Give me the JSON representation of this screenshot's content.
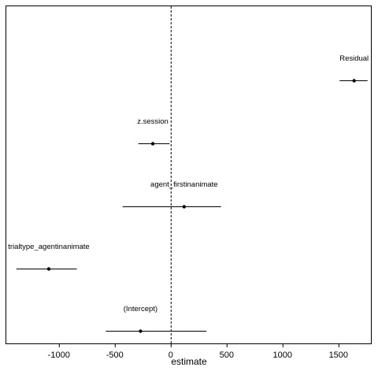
{
  "chart_data": {
    "type": "scatter",
    "title": "",
    "xlabel": "estimate",
    "ylabel": "",
    "xlim": [
      -1470,
      1790
    ],
    "x_ticks": [
      -1000,
      -500,
      0,
      500,
      1000,
      1500
    ],
    "x_tick_labels": [
      "-1000",
      "-500",
      "0",
      "500",
      "1000",
      "1500"
    ],
    "reference_line": {
      "x": 0,
      "style": "dashed"
    },
    "grid": false,
    "legend": "none",
    "colors": {
      "point": "#000000",
      "line": "#000000",
      "frame": "#000000"
    },
    "series": [
      {
        "label": "Residual",
        "estimate": 1640,
        "lower": 1510,
        "upper": 1760
      },
      {
        "label": "z.session",
        "estimate": -160,
        "lower": -290,
        "upper": -10
      },
      {
        "label": "agent_firstinanimate",
        "estimate": 120,
        "lower": -430,
        "upper": 450
      },
      {
        "label": "trialtype_agentinanimate",
        "estimate": -1090,
        "lower": -1380,
        "upper": -840
      },
      {
        "label": "(Intercept)",
        "estimate": -270,
        "lower": -580,
        "upper": 320
      }
    ]
  }
}
